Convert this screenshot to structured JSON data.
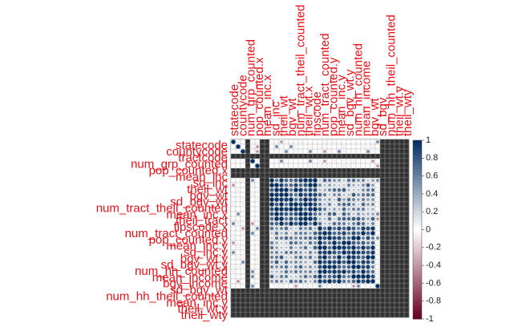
{
  "chart_data": {
    "type": "heatmap",
    "subtype": "correlation-matrix (corrplot, circle method)",
    "title": "",
    "colorbar": {
      "ticks": [
        "1",
        "0.8",
        "0.6",
        "0.4",
        "0.2",
        "0",
        "-0.2",
        "-0.4",
        "-0.6",
        "-0.8",
        "-1"
      ],
      "range": [
        -1,
        1
      ],
      "colors": {
        "neg": "#67001f",
        "zero": "#ffffff",
        "pos": "#053061"
      }
    },
    "label_color": "#e8101a",
    "row_labels_visible": [
      "statecode",
      "countycode",
      "tractcode",
      "num_grp_counted",
      "pop_counted.x",
      "mean_inc",
      "sd_inc",
      "theil_wt",
      "bgv_wt",
      "sd_bgv_wt",
      "num_tract_theil_counted",
      "mean_inc.x",
      "theil_tract",
      "fipscode.x",
      "num_tract_counted",
      "pop_counted.y",
      "mean_inc.y",
      "sd_inc.y",
      "bgv_wt.y",
      "sd_bgv_wt.y",
      "num_hh_counted",
      "mean_income",
      "bgv_income",
      "sd_bgv_wt",
      "num_hh_theil_counted",
      "mean_inc.y",
      "theil_wt.y",
      "theil_wty"
    ],
    "col_labels_visible": [
      "statecode",
      "countycode",
      "num_grp_counted",
      "pop_counted.x",
      "mean_inc.x",
      "sd_inc",
      "theil_wt",
      "bgv_wt",
      "num_tract_theil_counted",
      "theil_wt.x",
      "fipscode",
      "num_tract_counted",
      "pop_counted.y",
      "mean_inc.y",
      "sd_bgv_wt.y",
      "num_hh_counted",
      "mean_income",
      "bgv_wt",
      "sd_bgv",
      "num_hh_theil_counted",
      "theil_wt.y",
      "theil_wty"
    ],
    "na_rows": [
      3,
      6,
      7,
      31,
      32,
      33,
      34,
      35,
      36
    ],
    "na_cols": [
      3,
      6,
      7,
      31,
      32,
      33,
      34,
      35,
      36
    ],
    "blocks": [
      {
        "rows": [
          8,
          17
        ],
        "cols": [
          8,
          17
        ],
        "value": 0.9
      },
      {
        "rows": [
          18,
          29
        ],
        "cols": [
          18,
          29
        ],
        "value": 0.85
      },
      {
        "rows": [
          8,
          17
        ],
        "cols": [
          18,
          29
        ],
        "value": 0.55
      },
      {
        "rows": [
          18,
          29
        ],
        "cols": [
          8,
          17
        ],
        "value": 0.55
      }
    ]
  }
}
